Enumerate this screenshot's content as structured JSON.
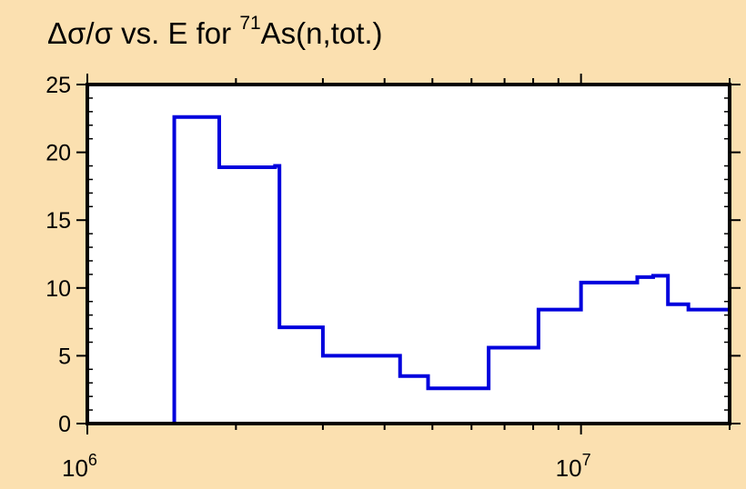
{
  "chart_data": {
    "type": "line",
    "step": true,
    "title": {
      "prefix": "Δσ/σ vs. E for ",
      "superscript": "71",
      "suffix": "As(n,tot.)"
    },
    "xlabel": "",
    "ylabel": "",
    "x_scale": "log",
    "xlim": [
      1000000,
      20000000
    ],
    "ylim": [
      0,
      25
    ],
    "y_ticks": [
      0,
      5,
      10,
      15,
      20,
      25
    ],
    "x_tick_labels": [
      {
        "value": 1000000,
        "base": "10",
        "exp": "6"
      },
      {
        "value": 10000000,
        "base": "10",
        "exp": "7"
      }
    ],
    "grid": false,
    "line_color": "#0000dd",
    "series": [
      {
        "edges": [
          1500000,
          1850000,
          2400000,
          2450000,
          3000000,
          4300000,
          4900000,
          6500000,
          8200000,
          10000000,
          13000000,
          14000000,
          15000000,
          16500000,
          18000000,
          20000000
        ],
        "values": [
          22.6,
          18.9,
          19.0,
          7.1,
          5.0,
          3.5,
          2.6,
          5.6,
          8.4,
          10.4,
          10.8,
          10.9,
          8.8,
          8.4,
          8.4
        ]
      }
    ]
  }
}
